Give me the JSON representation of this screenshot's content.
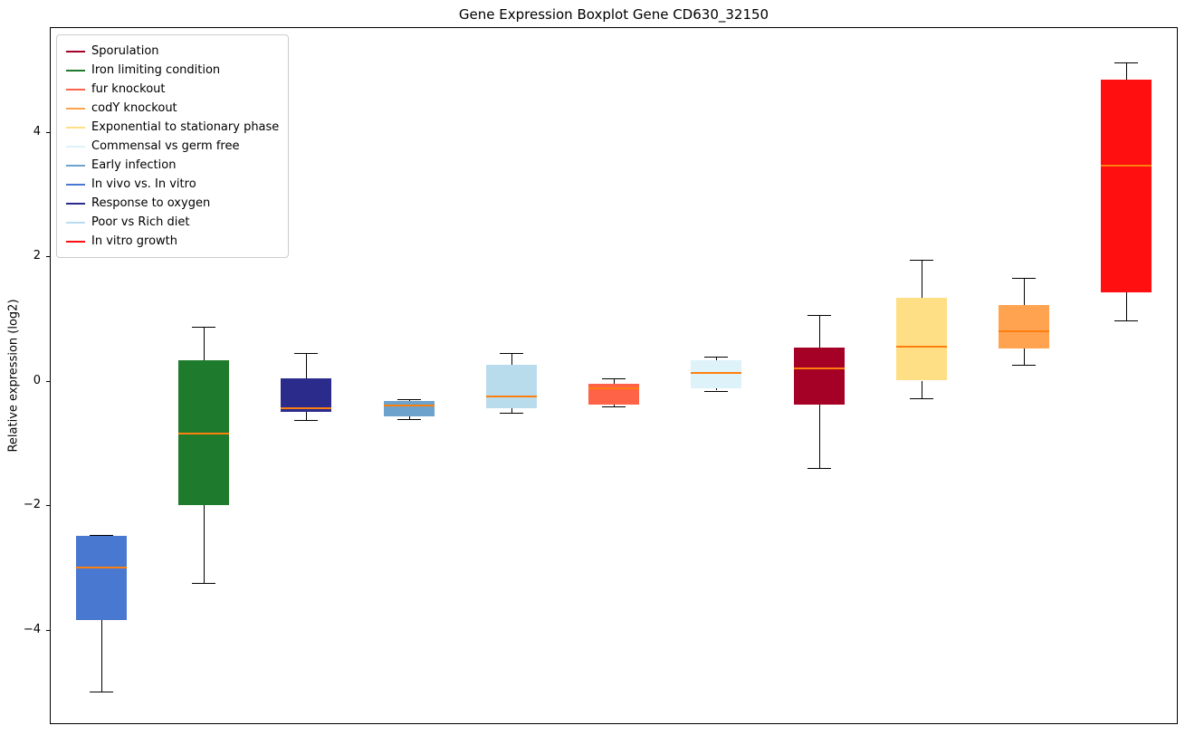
{
  "chart_data": {
    "type": "boxplot",
    "title": "Gene Expression Boxplot Gene CD630_32150",
    "ylabel": "Relative expression (log2)",
    "ylim": [
      -5.52,
      5.68
    ],
    "yticks": [
      -4,
      -2,
      0,
      2,
      4
    ],
    "grid": false,
    "legend_position": "upper left",
    "median_color": "#ff7f0e",
    "legend": [
      {
        "label": "Sporulation",
        "color": "#a50026"
      },
      {
        "label": "Iron limiting condition",
        "color": "#1e7b2d"
      },
      {
        "label": "fur knockout",
        "color": "#ff6347"
      },
      {
        "label": "codY knockout",
        "color": "#ffa351"
      },
      {
        "label": "Exponential to stationary phase",
        "color": "#ffdf86"
      },
      {
        "label": "Commensal vs germ free",
        "color": "#def2f9"
      },
      {
        "label": "Early infection",
        "color": "#6ca2cc"
      },
      {
        "label": "In vivo vs. In vitro",
        "color": "#4878cf"
      },
      {
        "label": "Response to oxygen",
        "color": "#2b2b8c"
      },
      {
        "label": "Poor vs Rich diet",
        "color": "#b9dcec"
      },
      {
        "label": "In vitro growth",
        "color": "#ff0f0f"
      }
    ],
    "boxes": [
      {
        "condition": "In vivo vs. In vitro",
        "color": "#4878cf",
        "whisker_low": -5.0,
        "q1": -3.85,
        "median": -3.0,
        "q3": -2.5,
        "whisker_high": -2.48
      },
      {
        "condition": "Iron limiting condition",
        "color": "#1e7b2d",
        "whisker_low": -3.25,
        "q1": -2.0,
        "median": -0.85,
        "q3": 0.33,
        "whisker_high": 0.87
      },
      {
        "condition": "Response to oxygen",
        "color": "#2b2b8c",
        "whisker_low": -0.63,
        "q1": -0.5,
        "median": -0.45,
        "q3": 0.03,
        "whisker_high": 0.44
      },
      {
        "condition": "Early infection",
        "color": "#6ca2cc",
        "whisker_low": -0.62,
        "q1": -0.57,
        "median": -0.4,
        "q3": -0.33,
        "whisker_high": -0.3
      },
      {
        "condition": "Poor vs Rich diet",
        "color": "#b9dcec",
        "whisker_low": -0.52,
        "q1": -0.45,
        "median": -0.25,
        "q3": 0.25,
        "whisker_high": 0.45
      },
      {
        "condition": "fur knockout",
        "color": "#ff6347",
        "whisker_low": -0.41,
        "q1": -0.38,
        "median": -0.13,
        "q3": -0.05,
        "whisker_high": 0.04
      },
      {
        "condition": "Commensal vs germ free",
        "color": "#def2f9",
        "whisker_low": -0.16,
        "q1": -0.13,
        "median": 0.13,
        "q3": 0.33,
        "whisker_high": 0.39
      },
      {
        "condition": "Sporulation",
        "color": "#a50026",
        "whisker_low": -1.4,
        "q1": -0.39,
        "median": 0.2,
        "q3": 0.53,
        "whisker_high": 1.05
      },
      {
        "condition": "Exponential to stationary phase",
        "color": "#ffdf86",
        "whisker_low": -0.29,
        "q1": 0.0,
        "median": 0.55,
        "q3": 1.33,
        "whisker_high": 1.94
      },
      {
        "condition": "codY knockout",
        "color": "#ffa351",
        "whisker_low": 0.26,
        "q1": 0.51,
        "median": 0.8,
        "q3": 1.21,
        "whisker_high": 1.65
      },
      {
        "condition": "In vitro growth",
        "color": "#ff0f0f",
        "whisker_low": 0.97,
        "q1": 1.42,
        "median": 3.45,
        "q3": 4.84,
        "whisker_high": 5.12
      }
    ]
  }
}
